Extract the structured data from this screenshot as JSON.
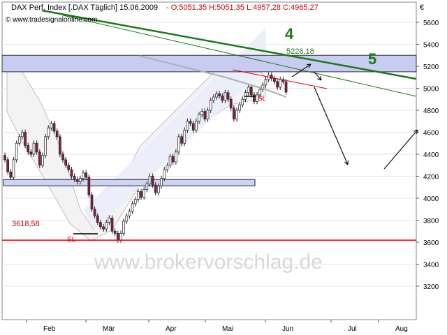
{
  "header": {
    "instrument": "DAX Perf. Index [.DAX Täglich] 15.06.2009",
    "ohlc": "- O:5051,35 H:5051,35 L:4957,28 C:4965,27",
    "credit": "© www.tradesignalonline.com",
    "currency_symbol": "€"
  },
  "watermark": "www.brokervorschlag.de",
  "annotations": {
    "wave4": "4",
    "wave5": "5",
    "resistance_label": "5226,18",
    "support_label": "3618,58",
    "sl_low": "SL",
    "sl_high": "SL"
  },
  "colors": {
    "up_candle": "#ffffff",
    "down_candle": "#8b1a4a",
    "resistance_band": "#c8ccf0",
    "support_line": "#e00000",
    "trend_green": "#1a7a1a",
    "ma_gray": "#b0b0b0",
    "channel_fill": "#eceef9"
  },
  "chart_data": {
    "type": "candlestick",
    "title": "DAX Perf. Index [.DAX Täglich] 15.06.2009",
    "xlabel": "",
    "ylabel": "",
    "ylim": [
      3000,
      5700
    ],
    "y_ticks": [
      3200,
      3400,
      3600,
      3800,
      4000,
      4200,
      4400,
      4600,
      4800,
      5000,
      5200,
      5400,
      5600
    ],
    "y_tick_labels": [
      "3200",
      "3400",
      "3600",
      "3800",
      "4000",
      "4200",
      "4400",
      "4600",
      "4800",
      "5000",
      "5200",
      "5400",
      "5600"
    ],
    "x_tick_labels": [
      "Feb",
      "Mär",
      "Apr",
      "Mai",
      "Jun",
      "Jul",
      "Aug"
    ],
    "last_bar": {
      "date": "15.06.2009",
      "open": 5051.35,
      "high": 5051.35,
      "low": 4957.28,
      "close": 4965.27
    },
    "levels": [
      {
        "label": "5226,18",
        "value": 5226.18
      },
      {
        "label": "3618,58",
        "value": 3618.58
      }
    ],
    "series": [
      {
        "values": [
          4350,
          4240,
          4190,
          4350,
          4500,
          4560,
          4600,
          4480,
          4420,
          4400,
          4500,
          4420,
          4300,
          4390,
          4560,
          4640,
          4680,
          4610,
          4560,
          4400,
          4350,
          4300,
          4260,
          4200,
          4170,
          4150,
          4180,
          4230,
          4190,
          4030,
          3900,
          3840,
          3780,
          3740,
          3720,
          3780,
          3820,
          3700,
          3680,
          3620,
          3680,
          3790,
          3840,
          3880,
          3950,
          3990,
          4060,
          4010,
          4080,
          4130,
          4200,
          4120,
          4050,
          4110,
          4180,
          4260,
          4300,
          4380,
          4330,
          4420,
          4560,
          4500,
          4620,
          4700,
          4680,
          4620,
          4700,
          4760,
          4790,
          4720,
          4800,
          4890,
          4920,
          4950,
          4930,
          4890,
          4960,
          4900,
          4820,
          4720,
          4800,
          4850,
          4900,
          4960,
          5010,
          4940,
          4880,
          4940,
          4990,
          5030,
          5080,
          5120,
          5090,
          5060,
          5010,
          5080,
          5060,
          4965
        ]
      }
    ]
  }
}
